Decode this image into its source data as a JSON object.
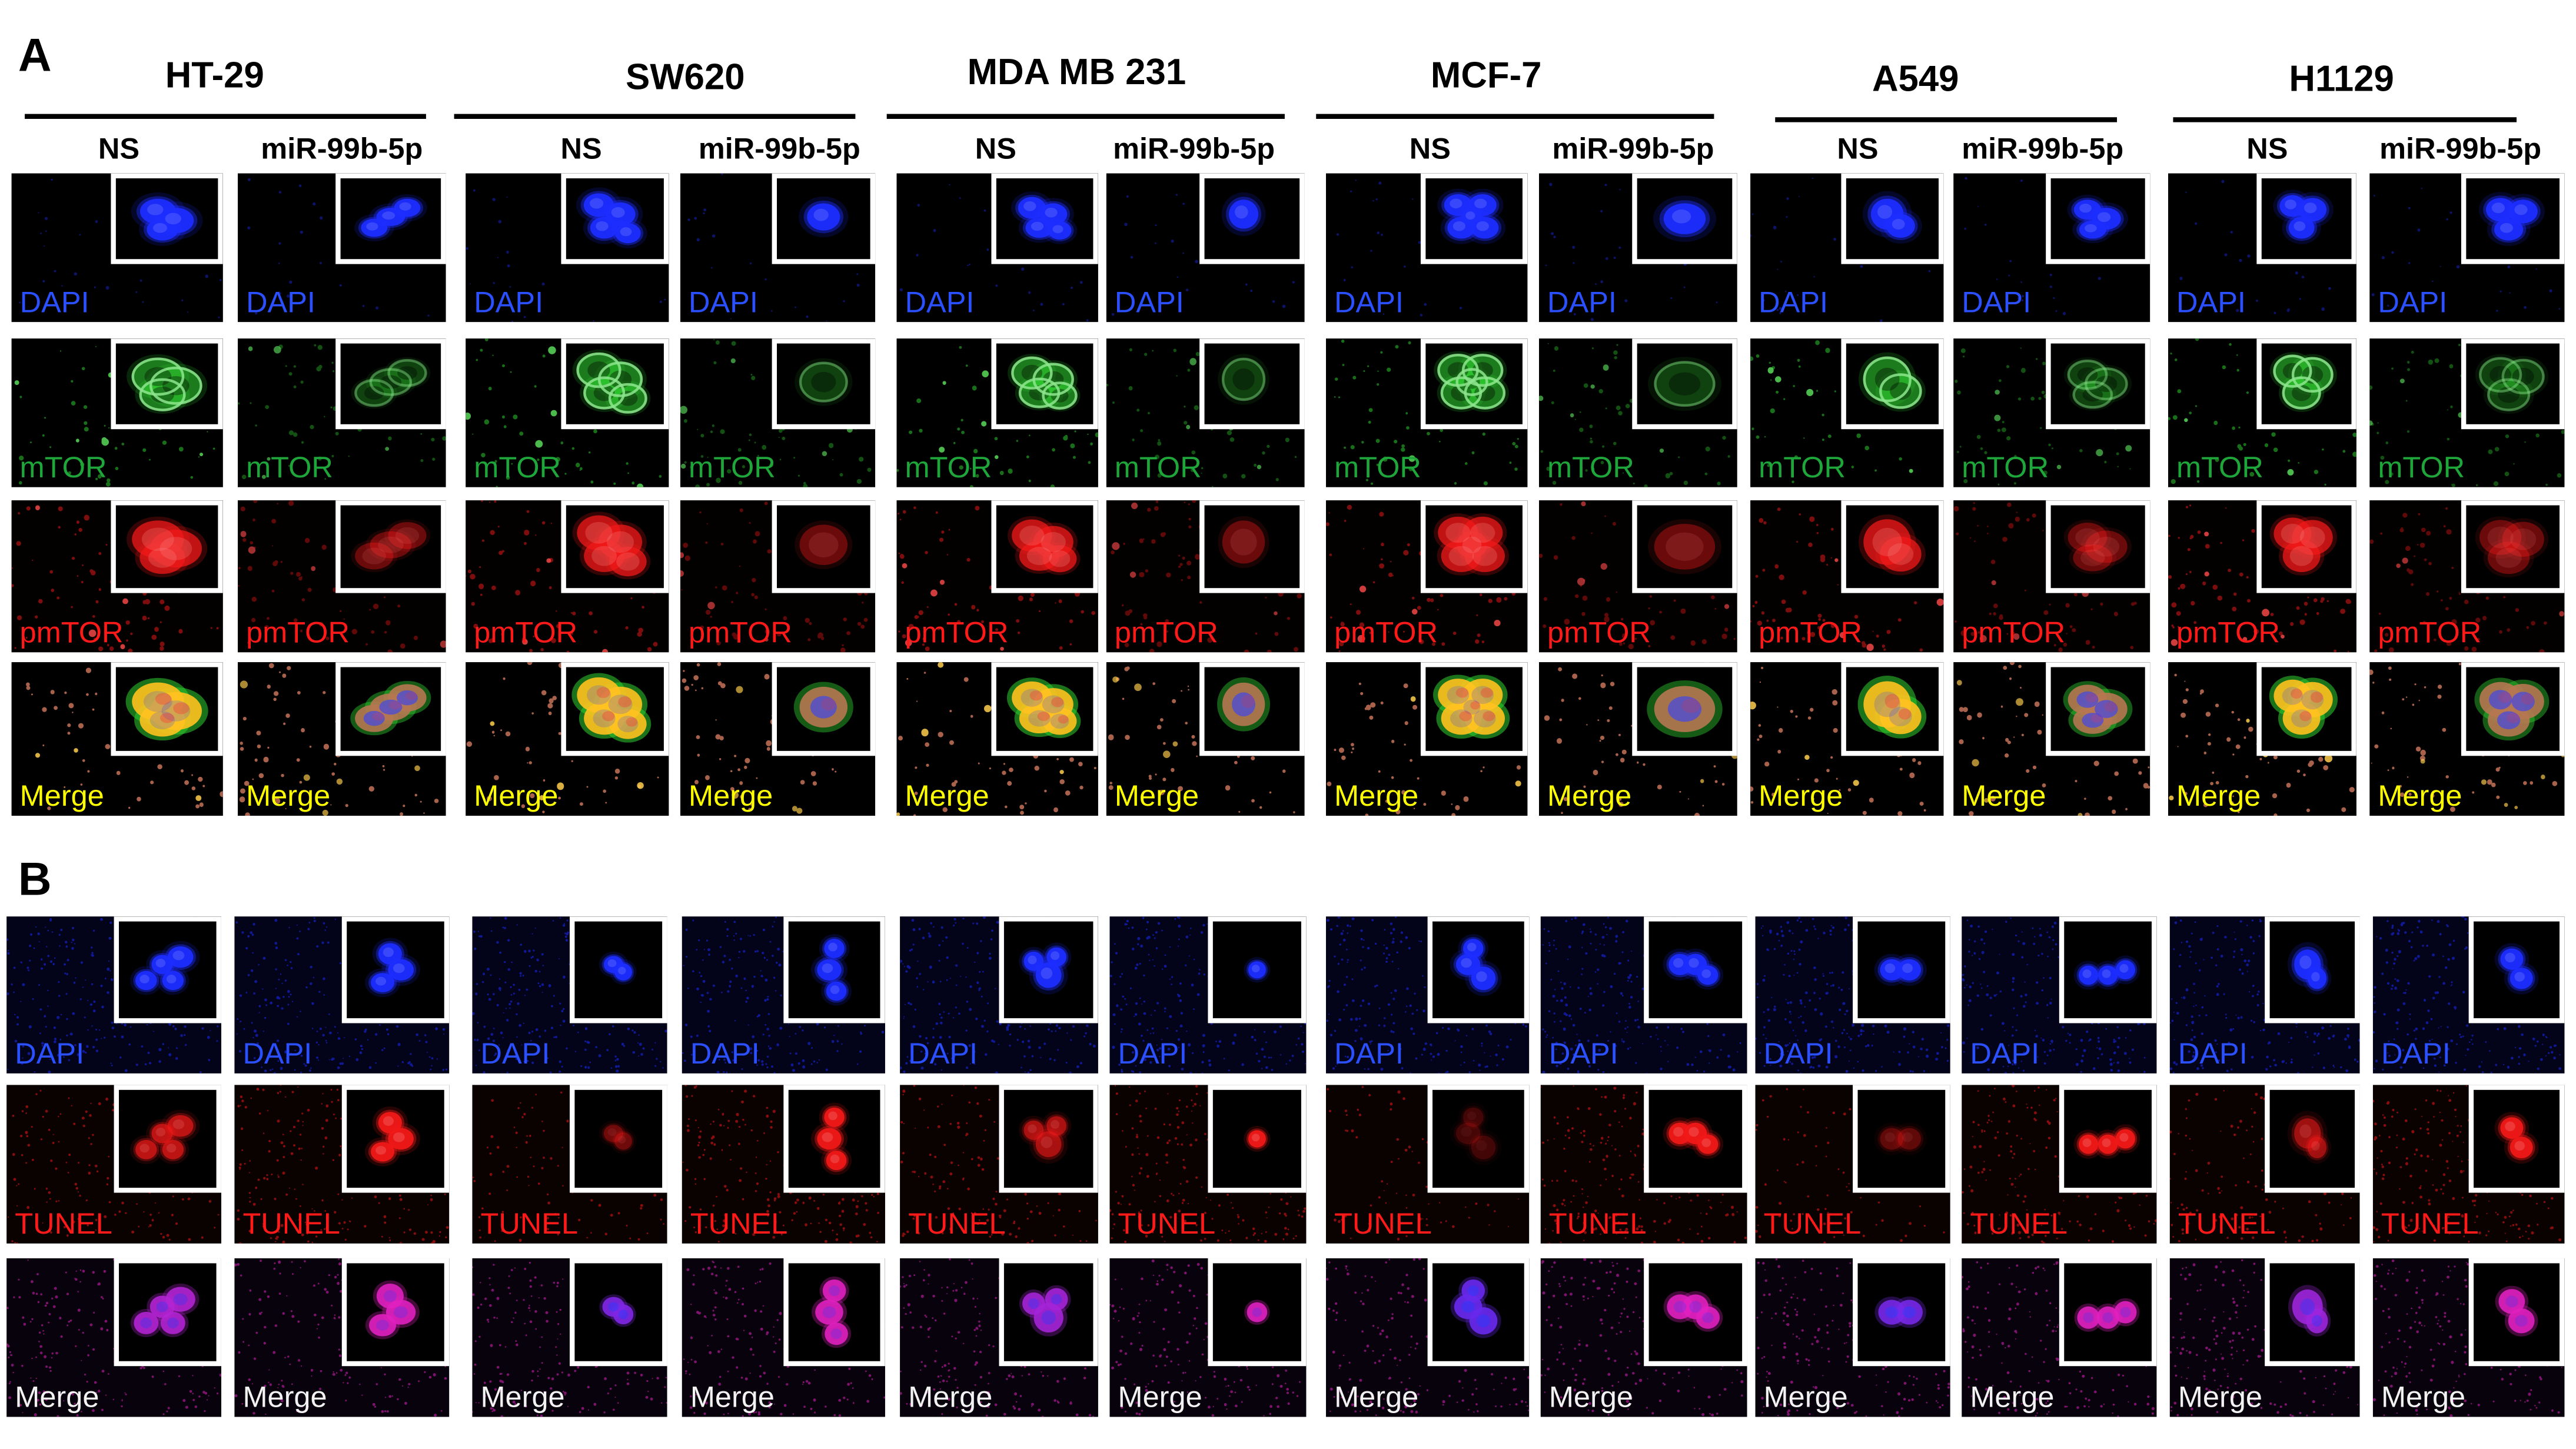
{
  "panel_a": {
    "label": "A",
    "cell_lines": [
      {
        "name": "HT-29",
        "conditions": [
          "NS",
          "miR-99b-5p"
        ]
      },
      {
        "name": "SW620",
        "conditions": [
          "NS",
          "miR-99b-5p"
        ]
      },
      {
        "name": "MDA MB 231",
        "conditions": [
          "NS",
          "miR-99b-5p"
        ]
      },
      {
        "name": "MCF-7",
        "conditions": [
          "NS",
          "miR-99b-5p"
        ]
      },
      {
        "name": "A549",
        "conditions": [
          "NS",
          "miR-99b-5p"
        ]
      },
      {
        "name": "H1129",
        "conditions": [
          "NS",
          "miR-99b-5p"
        ]
      }
    ],
    "stains": [
      {
        "label": "DAPI",
        "label_color": "#2b50ff",
        "signal_color": "#1c2dff"
      },
      {
        "label": "mTOR",
        "label_color": "#1fa63a",
        "signal_color": "#2fd02f"
      },
      {
        "label": "pmTOR",
        "label_color": "#ff1a1a",
        "signal_color": "#f01818"
      },
      {
        "label": "Merge",
        "label_color": "#ffff00",
        "signal_color": "#ffc21f"
      }
    ]
  },
  "panel_b": {
    "label": "B",
    "stains": [
      {
        "label": "DAPI",
        "label_color": "#2b50ff",
        "signal_color": "#1c2dff"
      },
      {
        "label": "TUNEL",
        "label_color": "#ff1a1a",
        "signal_color": "#f01818"
      },
      {
        "label": "Merge",
        "label_color": "#f2f2f2",
        "signal_color": "#e020c0"
      }
    ]
  }
}
